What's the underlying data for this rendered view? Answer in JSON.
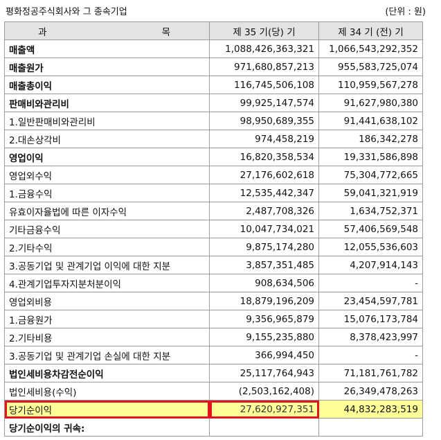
{
  "caption": {
    "company": "평화정공주식회사와 그 종속기업",
    "unit": "(단위 : 원)"
  },
  "columns": {
    "subject_a": "과",
    "subject_b": "목",
    "current": "제 35 기(당) 기",
    "prior": "제 34 기 (전) 기"
  },
  "rows": [
    {
      "label": "매출액",
      "current": "1,088,426,363,321",
      "prior": "1,066,543,292,352",
      "bold": true
    },
    {
      "label": "매출원가",
      "current": "971,680,857,213",
      "prior": "955,583,725,074",
      "bold": true
    },
    {
      "label": "매출총이익",
      "current": "116,745,506,108",
      "prior": "110,959,567,278",
      "bold": true
    },
    {
      "label": "판매비와관리비",
      "current": "99,925,147,574",
      "prior": "91,627,980,380",
      "bold": true
    },
    {
      "label": "1.일반판매비와관리비",
      "current": "98,950,689,355",
      "prior": "91,441,638,102",
      "bold": false
    },
    {
      "label": "2.대손상각비",
      "current": "974,458,219",
      "prior": "186,342,278",
      "bold": false
    },
    {
      "label": "영업이익",
      "current": "16,820,358,534",
      "prior": "19,331,586,898",
      "bold": true
    },
    {
      "label": "영업외수익",
      "current": "27,176,602,618",
      "prior": "75,304,772,665",
      "bold": false
    },
    {
      "label": "1.금융수익",
      "current": "12,535,442,347",
      "prior": "59,041,321,919",
      "bold": false
    },
    {
      "label": "유효이자율법에 따른 이자수익",
      "current": "2,487,708,326",
      "prior": "1,634,752,371",
      "bold": false
    },
    {
      "label": "기타금융수익",
      "current": "10,047,734,021",
      "prior": "57,406,569,548",
      "bold": false
    },
    {
      "label": "2.기타수익",
      "current": "9,875,174,280",
      "prior": "12,055,536,603",
      "bold": false
    },
    {
      "label": "3.공동기업 및 관계기업 이익에 대한 지분",
      "current": "3,857,351,485",
      "prior": "4,207,914,143",
      "bold": false
    },
    {
      "label": "4.관계기업투자지분처분이익",
      "current": "908,634,506",
      "prior": "-",
      "bold": false
    },
    {
      "label": "영업외비용",
      "current": "18,879,196,209",
      "prior": "23,454,597,781",
      "bold": false
    },
    {
      "label": "1.금융원가",
      "current": "9,356,965,879",
      "prior": "15,076,173,784",
      "bold": false
    },
    {
      "label": "2.기타비용",
      "current": "9,155,235,880",
      "prior": "8,378,423,997",
      "bold": false
    },
    {
      "label": "3.공동기업 및 관계기업 손실에 대한 지분",
      "current": "366,994,450",
      "prior": "-",
      "bold": false
    },
    {
      "label": "법인세비용차감전순이익",
      "current": "25,117,764,943",
      "prior": "71,181,761,782",
      "bold": true
    },
    {
      "label": "법인세비용(수익)",
      "current": "(2,503,162,408)",
      "prior": "26,349,478,263",
      "bold": false
    },
    {
      "label": "당기순이익",
      "current": "27,620,927,351",
      "prior": "44,832,283,519",
      "bold": false,
      "highlight": true
    },
    {
      "label": "당기순이익의 귀속:",
      "current": "",
      "prior": "",
      "bold": true
    }
  ],
  "highlight_colors": {
    "fill": "#ffff99",
    "border": "#e0141e"
  }
}
